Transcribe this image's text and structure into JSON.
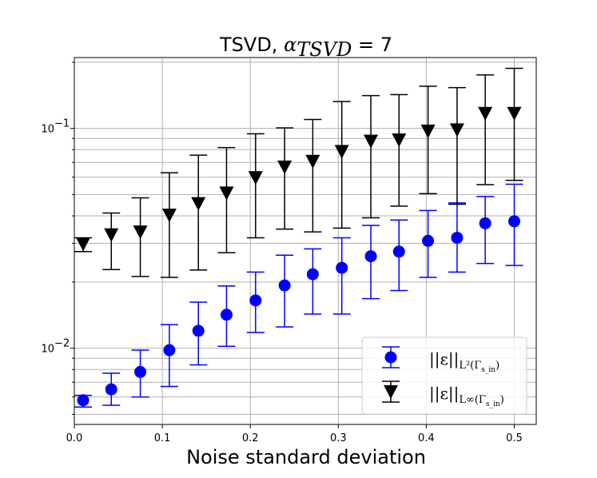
{
  "chart_data": {
    "type": "scatter",
    "title": "TSVD, α_TSVD = 7",
    "title_parts": {
      "prefix": "TSVD, ",
      "alpha": "α",
      "subscript": "TSVD",
      "suffix": " = 7"
    },
    "xlabel": "Noise standard deviation",
    "ylabel": "",
    "xlim": [
      0.0,
      0.525
    ],
    "ylim": [
      0.0045,
      0.21
    ],
    "yscale": "log",
    "grid": true,
    "x_ticks": [
      0.0,
      0.1,
      0.2,
      0.3,
      0.4,
      0.5
    ],
    "x_tick_labels": [
      "0.0",
      "0.1",
      "0.2",
      "0.3",
      "0.4",
      "0.5"
    ],
    "y_major_ticks": [
      0.01,
      0.1
    ],
    "y_tick_labels": [
      "10",
      "10"
    ],
    "y_tick_exponents": [
      "−2",
      "−1"
    ],
    "y_minor_ticks": [
      0.005,
      0.006,
      0.007,
      0.008,
      0.009,
      0.02,
      0.03,
      0.04,
      0.05,
      0.06,
      0.07,
      0.08,
      0.09,
      0.2
    ],
    "x": [
      0.01,
      0.042,
      0.075,
      0.108,
      0.141,
      0.173,
      0.206,
      0.239,
      0.271,
      0.304,
      0.337,
      0.369,
      0.402,
      0.435,
      0.467,
      0.5
    ],
    "series": [
      {
        "name": "||ε||_{L²(Γ_sin)}",
        "legend_main": "||ε||",
        "legend_sub": "L²(Γ",
        "legend_subsub": "s_in",
        "legend_close": ")",
        "marker": "circle",
        "color": "#0000ff",
        "values": [
          0.0058,
          0.0065,
          0.0078,
          0.0098,
          0.012,
          0.0142,
          0.0165,
          0.0193,
          0.0217,
          0.0232,
          0.0262,
          0.0275,
          0.0308,
          0.0318,
          0.037,
          0.0378
        ],
        "err_low": [
          0.0054,
          0.0055,
          0.006,
          0.0067,
          0.0084,
          0.0102,
          0.0118,
          0.0125,
          0.0143,
          0.0143,
          0.0168,
          0.0183,
          0.021,
          0.0222,
          0.0243,
          0.0238
        ],
        "err_high": [
          0.0061,
          0.0077,
          0.0098,
          0.0128,
          0.0162,
          0.0192,
          0.0222,
          0.0265,
          0.0283,
          0.0318,
          0.0362,
          0.0383,
          0.0423,
          0.0458,
          0.049,
          0.0557
        ]
      },
      {
        "name": "||ε||_{L^∞(Γ_sin)}",
        "legend_main": "||ε||",
        "legend_sub": "L∞(Γ",
        "legend_subsub": "s_in",
        "legend_close": ")",
        "marker": "triangle-down",
        "color": "#000000",
        "values": [
          0.0298,
          0.0328,
          0.0338,
          0.0403,
          0.0455,
          0.0508,
          0.0597,
          0.0667,
          0.0708,
          0.0785,
          0.0875,
          0.0887,
          0.0972,
          0.0985,
          0.117,
          0.117
        ],
        "err_low": [
          0.0275,
          0.0228,
          0.0212,
          0.021,
          0.0227,
          0.0272,
          0.0318,
          0.0348,
          0.0338,
          0.0352,
          0.0392,
          0.0443,
          0.0505,
          0.0452,
          0.0555,
          0.058
        ],
        "err_high": [
          0.0318,
          0.0412,
          0.0483,
          0.0628,
          0.0755,
          0.0818,
          0.0945,
          0.1005,
          0.1098,
          0.1325,
          0.141,
          0.1425,
          0.1555,
          0.1532,
          0.175,
          0.1875
        ]
      }
    ]
  }
}
